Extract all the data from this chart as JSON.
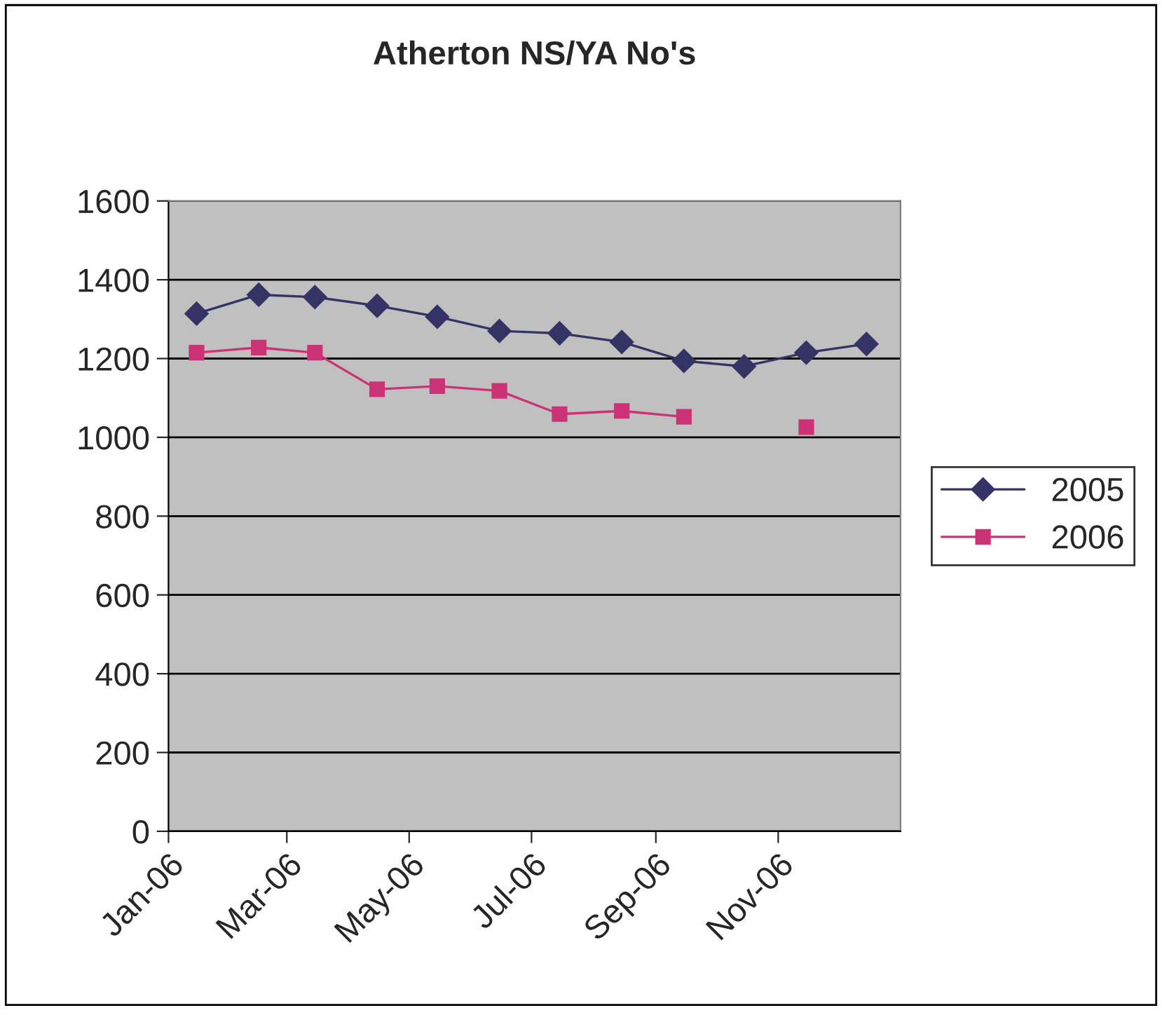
{
  "chart_data": {
    "type": "line",
    "title": "Atherton NS/YA No's",
    "x": [
      "2006-01-15",
      "2006-02-15",
      "2006-03-15",
      "2006-04-15",
      "2006-05-15",
      "2006-06-15",
      "2006-07-15",
      "2006-08-15",
      "2006-09-15",
      "2006-10-15",
      "2006-11-15",
      "2006-12-15"
    ],
    "series": [
      {
        "name": "2005",
        "color": "#333366",
        "marker": "diamond",
        "values": [
          1314,
          1362,
          1356,
          1334,
          1306,
          1270,
          1264,
          1242,
          1194,
          1180,
          1215,
          1237
        ]
      },
      {
        "name": "2006",
        "color": "#cc3377",
        "marker": "square",
        "values": [
          1215,
          1228,
          1215,
          1122,
          1130,
          1118,
          1059,
          1067,
          1052,
          null,
          1026,
          null
        ]
      }
    ],
    "xlim": [
      "2006-01-01",
      "2007-01-01"
    ],
    "xticks": [
      {
        "value": "2006-01-01",
        "label": "Jan-06"
      },
      {
        "value": "2006-03-01",
        "label": "Mar-06"
      },
      {
        "value": "2006-05-01",
        "label": "May-06"
      },
      {
        "value": "2006-07-01",
        "label": "Jul-06"
      },
      {
        "value": "2006-09-01",
        "label": "Sep-06"
      },
      {
        "value": "2006-11-01",
        "label": "Nov-06"
      }
    ],
    "ylim": [
      0,
      1600
    ],
    "yticks": [
      0,
      200,
      400,
      600,
      800,
      1000,
      1200,
      1400,
      1600
    ],
    "grid": "y",
    "legend": "right",
    "line_style": "solid"
  }
}
